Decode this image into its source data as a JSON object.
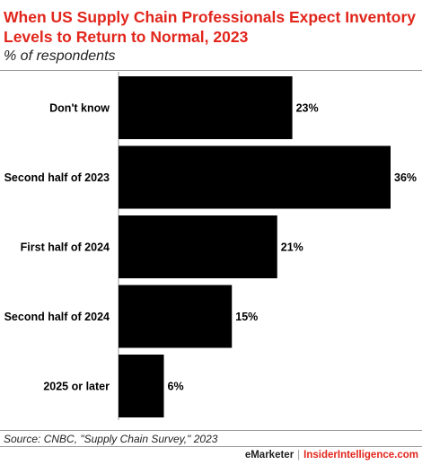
{
  "header": {
    "title": "When US Supply Chain Professionals Expect Inventory Levels to Return to Normal, 2023",
    "subtitle": "% of respondents"
  },
  "chart_data": {
    "type": "bar",
    "orientation": "horizontal",
    "categories": [
      "Don't know",
      "Second half of 2023",
      "First half of 2024",
      "Second half of 2024",
      "2025 or later"
    ],
    "values": [
      23,
      36,
      21,
      15,
      6
    ],
    "value_labels": [
      "23%",
      "36%",
      "21%",
      "15%",
      "6%"
    ],
    "xlim": [
      0,
      36
    ],
    "grid": false,
    "bar_color": "#000000"
  },
  "footer": {
    "source": "Source: CNBC, \"Supply Chain Survey,\" 2023",
    "brand_left": "eMarketer",
    "separator": "|",
    "brand_right": "InsiderIntelligence.com"
  },
  "colors": {
    "accent": "#e1261c",
    "bar": "#000000"
  }
}
